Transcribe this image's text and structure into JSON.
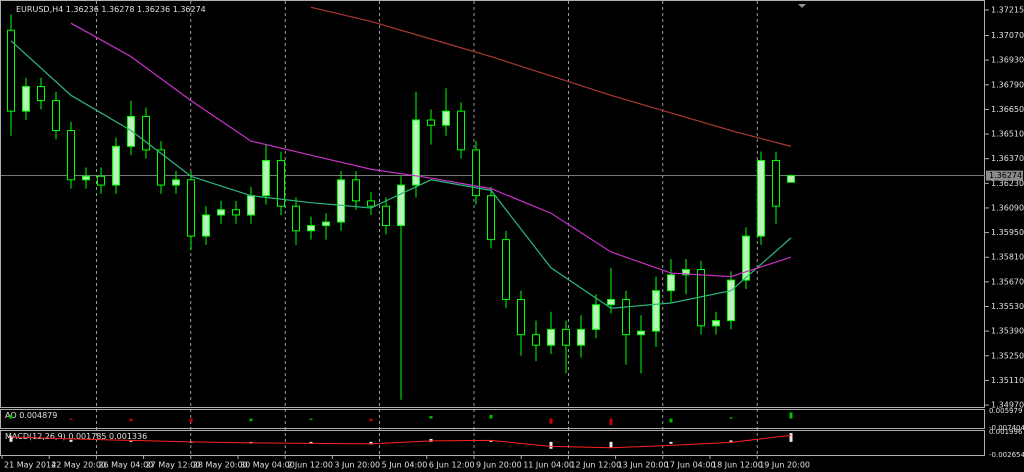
{
  "chart_data": {
    "type": "candlestick",
    "title": "EURUSD,H4",
    "open": [
      1.371,
      1.3664,
      1.3678,
      1.367,
      1.3653,
      1.3625,
      1.3627,
      1.3622,
      1.3644,
      1.3661,
      1.3642,
      1.3622,
      1.3625,
      1.3593,
      1.3605,
      1.3608,
      1.3605,
      1.3616,
      1.3636,
      1.361,
      1.3596,
      1.3599,
      1.3601,
      1.3625,
      1.3613,
      1.361,
      1.3599,
      1.3622,
      1.3659,
      1.3656,
      1.3664,
      1.3642,
      1.3616,
      1.3591,
      1.3557,
      1.3537,
      1.3531,
      1.354,
      1.3531,
      1.354,
      1.3554,
      1.3557,
      1.3537,
      1.3539,
      1.3562,
      1.3571,
      1.3574,
      1.3542,
      1.3545,
      1.3568,
      1.3593,
      1.3636,
      1.36236
    ],
    "high": [
      1.3719,
      1.3683,
      1.3683,
      1.3675,
      1.3658,
      1.3632,
      1.3632,
      1.3649,
      1.367,
      1.3666,
      1.3647,
      1.363,
      1.363,
      1.361,
      1.3613,
      1.3613,
      1.3621,
      1.3645,
      1.3641,
      1.3615,
      1.3604,
      1.3606,
      1.363,
      1.363,
      1.3618,
      1.3615,
      1.3627,
      1.3675,
      1.3665,
      1.3677,
      1.3669,
      1.3647,
      1.3621,
      1.3596,
      1.3562,
      1.3545,
      1.355,
      1.3545,
      1.3548,
      1.356,
      1.3575,
      1.3562,
      1.3548,
      1.357,
      1.358,
      1.358,
      1.3579,
      1.355,
      1.3573,
      1.3598,
      1.3641,
      1.3641,
      1.36278
    ],
    "low": [
      1.365,
      1.3659,
      1.3665,
      1.3648,
      1.362,
      1.362,
      1.3617,
      1.3617,
      1.3639,
      1.3637,
      1.3617,
      1.3617,
      1.3585,
      1.3588,
      1.36,
      1.36,
      1.36,
      1.3611,
      1.3605,
      1.3588,
      1.3591,
      1.3591,
      1.3596,
      1.3608,
      1.3605,
      1.3594,
      1.35,
      1.3615,
      1.3645,
      1.365,
      1.3637,
      1.3611,
      1.3586,
      1.3552,
      1.3525,
      1.3522,
      1.3526,
      1.3515,
      1.3524,
      1.3535,
      1.3549,
      1.352,
      1.3515,
      1.353,
      1.3555,
      1.356,
      1.3537,
      1.3537,
      1.354,
      1.3563,
      1.3588,
      1.36,
      1.36236
    ],
    "close": [
      1.3664,
      1.3678,
      1.367,
      1.3653,
      1.3625,
      1.3627,
      1.3622,
      1.3644,
      1.3661,
      1.3642,
      1.3622,
      1.3625,
      1.3593,
      1.3605,
      1.3608,
      1.3605,
      1.3616,
      1.3636,
      1.361,
      1.3596,
      1.3599,
      1.3601,
      1.3625,
      1.3613,
      1.361,
      1.3599,
      1.3622,
      1.3659,
      1.3656,
      1.3664,
      1.3642,
      1.3616,
      1.3591,
      1.3557,
      1.3537,
      1.3531,
      1.354,
      1.3531,
      1.354,
      1.3554,
      1.3557,
      1.3537,
      1.3539,
      1.3562,
      1.3571,
      1.3574,
      1.3542,
      1.3545,
      1.3568,
      1.3593,
      1.3636,
      1.361,
      1.36274
    ],
    "up_color": "#b8f5b8",
    "down_color": "#000000",
    "edge_color": "#00ff00",
    "ylim": [
      1.34959,
      1.37266
    ],
    "yticks": [
      {
        "value": 1.37215,
        "label": "1.37215"
      },
      {
        "value": 1.3707,
        "label": "1.37070"
      },
      {
        "value": 1.3693,
        "label": "1.36930"
      },
      {
        "value": 1.3679,
        "label": "1.36790"
      },
      {
        "value": 1.3665,
        "label": "1.36650"
      },
      {
        "value": 1.3651,
        "label": "1.36510"
      },
      {
        "value": 1.3637,
        "label": "1.36370"
      },
      {
        "value": 1.3623,
        "label": "1.36230"
      },
      {
        "value": 1.3609,
        "label": "1.36090"
      },
      {
        "value": 1.3595,
        "label": "1.35950"
      },
      {
        "value": 1.3581,
        "label": "1.35810"
      },
      {
        "value": 1.3567,
        "label": "1.35670"
      },
      {
        "value": 1.3553,
        "label": "1.35530"
      },
      {
        "value": 1.3539,
        "label": "1.35390"
      },
      {
        "value": 1.3525,
        "label": "1.35250"
      },
      {
        "value": 1.3511,
        "label": "1.35110"
      },
      {
        "value": 1.3497,
        "label": "1.34970"
      }
    ],
    "xtick_labels": [
      "21 May 2014",
      "22 May 20:00",
      "26 May 04:00",
      "27 May 12:00",
      "28 May 20:00",
      "30 May 04:00",
      "2 Jun 12:00",
      "3 Jun 20:00",
      "5 Jun 04:00",
      "6 Jun 12:00",
      "9 Jun 20:00",
      "11 Jun 04:00",
      "12 Jun 12:00",
      "13 Jun 20:00",
      "17 Jun 04:00",
      "18 Jun 12:00",
      "19 Jun 20:00"
    ],
    "grid": true,
    "overlays": [
      {
        "color": "#2fb57d",
        "x": [
          0,
          4,
          8,
          12,
          16,
          20,
          24,
          28,
          32,
          36,
          40,
          44,
          48,
          52
        ],
        "values": [
          1.3704,
          1.3673,
          1.3653,
          1.3627,
          1.3616,
          1.3612,
          1.3609,
          1.3625,
          1.3619,
          1.3575,
          1.3552,
          1.3555,
          1.3562,
          1.3592
        ]
      },
      {
        "color": "#c832c8",
        "x": [
          0,
          4,
          8,
          12,
          16,
          20,
          24,
          28,
          32,
          36,
          40,
          44,
          48,
          52
        ],
        "values": [
          null,
          1.3714,
          1.3695,
          1.367,
          1.3647,
          1.3639,
          1.3631,
          1.3626,
          1.362,
          1.3606,
          1.3584,
          1.3572,
          1.357,
          1.3581
        ]
      },
      {
        "color": "#a83a32",
        "x": [
          20,
          24,
          28,
          32,
          36,
          40,
          44,
          48,
          52
        ],
        "values": [
          1.3723,
          1.3715,
          1.3705,
          1.3695,
          1.3684,
          1.3673,
          1.3663,
          1.3653,
          1.3644
        ]
      }
    ],
    "indicators": [
      {
        "type": "histogram",
        "label": "AO",
        "x": [
          0,
          4,
          8,
          12,
          16,
          20,
          24,
          28,
          32,
          36,
          40,
          44,
          48,
          52
        ],
        "values": [
          0.003,
          -0.001,
          -0.002,
          -0.003,
          -0.002,
          -0.001,
          -0.002,
          0.002,
          0.003,
          -0.004,
          -0.005,
          -0.003,
          0.001,
          0.004879
        ],
        "up_color": "#00c000",
        "down_color": "#d00000",
        "ylim": [
          -0.007404,
          0.005979
        ],
        "yticks": [
          0.005979,
          -0.007404
        ]
      },
      {
        "type": "macd",
        "label": "MACD(12,26,9)",
        "x": [
          0,
          4,
          8,
          12,
          16,
          20,
          24,
          28,
          32,
          36,
          40,
          44,
          48,
          52
        ],
        "values": [
          0.0012,
          0.0004,
          0.0002,
          -0.0002,
          -0.0003,
          -0.0004,
          -0.0005,
          0.0006,
          0.0002,
          -0.0014,
          -0.0012,
          -0.0004,
          0.0003,
          0.001785
        ],
        "signal": [
          0.001,
          0.0006,
          0.0003,
          0.0,
          -0.0002,
          -0.0003,
          -0.0004,
          0.0002,
          0.0003,
          -0.0009,
          -0.0012,
          -0.0007,
          -0.0001,
          0.001336
        ],
        "color": "#e8e8e8",
        "signal_color": "#ff2020",
        "ylim": [
          -0.002654,
          0.001996
        ],
        "yticks": [
          0.001996,
          -0.002654
        ]
      }
    ]
  }
}
